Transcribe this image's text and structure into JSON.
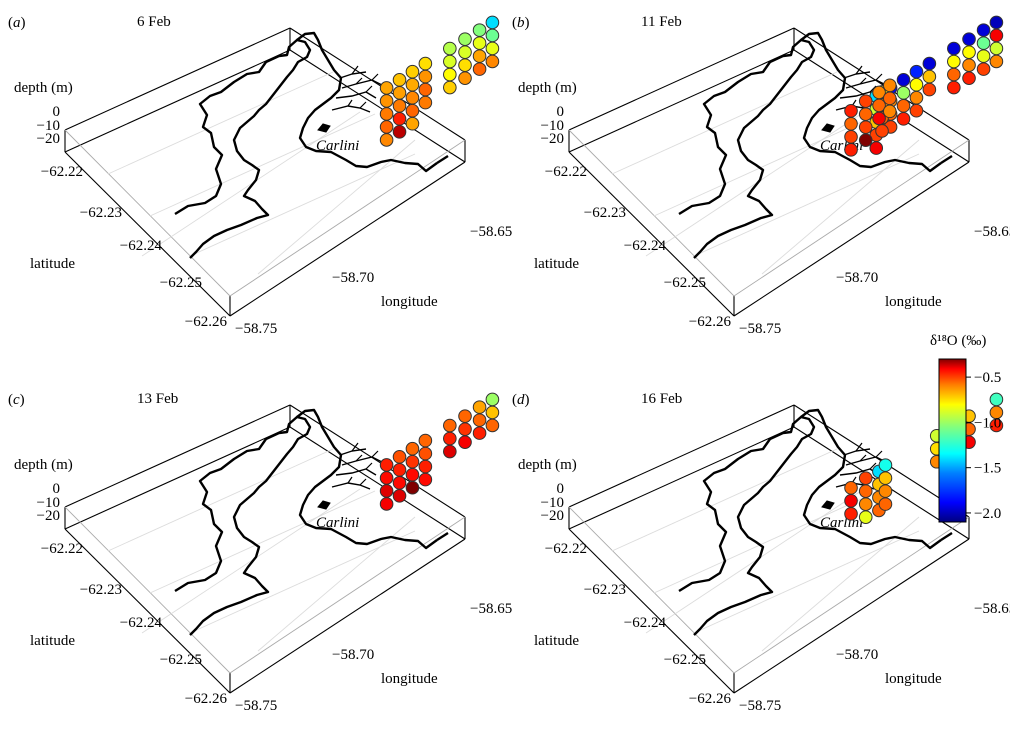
{
  "colorbar": {
    "title": "δ¹⁸O (‰)",
    "ticks": [
      "−0.5",
      "−1.0",
      "−1.5",
      "−2.0"
    ],
    "tick_values": [
      -0.5,
      -1.0,
      -1.5,
      -2.0
    ],
    "vmin": -2.1,
    "vmax": -0.3,
    "stops": [
      "#00007f",
      "#0000ff",
      "#0080ff",
      "#00ffff",
      "#80ff80",
      "#ffff00",
      "#ff8000",
      "#ff0000",
      "#7f0000"
    ]
  },
  "axis_text": {
    "depth_label": "depth (m)",
    "depth_ticks": [
      "0",
      "−10",
      "−20"
    ],
    "latitude_label": "latitude",
    "latitude_ticks": [
      "−62.22",
      "−62.23",
      "−62.24",
      "−62.25",
      "−62.26"
    ],
    "longitude_label": "longitude",
    "longitude_ticks": [
      "−58.65",
      "−58.70",
      "−58.75"
    ],
    "station_label": "Carlini"
  },
  "chart_data": [
    {
      "type": "scatter",
      "panel": "(a)",
      "title": "6 Feb",
      "stations": [
        {
          "lon": -58.712,
          "lat": -62.2352,
          "d18O": [
            -0.65,
            -0.62,
            -0.58,
            -0.55,
            -0.6
          ]
        },
        {
          "lon": -58.707,
          "lat": -62.2343,
          "d18O": [
            -0.7,
            -0.64,
            -0.58,
            -0.45,
            -0.35
          ]
        },
        {
          "lon": -58.702,
          "lat": -62.2334,
          "d18O": [
            -0.72,
            -0.66,
            -0.6,
            -0.55,
            -0.65
          ]
        },
        {
          "lon": -58.697,
          "lat": -62.2325,
          "d18O": [
            -0.75,
            -0.62,
            -0.55,
            -0.58
          ]
        },
        {
          "lon": -58.689,
          "lat": -62.2299,
          "d18O": [
            -0.95,
            -0.88,
            -0.8,
            -0.72
          ]
        },
        {
          "lon": -58.684,
          "lat": -62.2283,
          "d18O": [
            -1.0,
            -0.88,
            -0.75,
            -0.62
          ]
        },
        {
          "lon": -58.679,
          "lat": -62.2269,
          "d18O": [
            -1.05,
            -0.85,
            -0.65,
            -0.55
          ]
        },
        {
          "lon": -58.676,
          "lat": -62.2248,
          "d18O": [
            -1.4,
            -1.1,
            -0.85,
            -0.6
          ]
        }
      ]
    },
    {
      "type": "scatter",
      "panel": "(b)",
      "title": "11 Feb",
      "stations": [
        {
          "lon": -58.712,
          "lat": -62.2352,
          "d18O": [
            -1.9,
            -0.6,
            -0.55,
            -0.5
          ]
        },
        {
          "lon": -58.707,
          "lat": -62.2343,
          "d18O": [
            -1.95,
            -1.0,
            -0.55,
            -0.45
          ]
        },
        {
          "lon": -58.702,
          "lat": -62.2334,
          "d18O": [
            -1.8,
            -0.8,
            -0.6,
            -0.5
          ]
        },
        {
          "lon": -58.697,
          "lat": -62.2325,
          "d18O": [
            -1.95,
            -0.7,
            -0.5
          ]
        },
        {
          "lon": -58.689,
          "lat": -62.2299,
          "d18O": [
            -1.95,
            -0.8,
            -0.55,
            -0.45
          ]
        },
        {
          "lon": -58.684,
          "lat": -62.2283,
          "d18O": [
            -1.95,
            -0.8,
            -0.6,
            -0.45
          ]
        },
        {
          "lon": -58.679,
          "lat": -62.2269,
          "d18O": [
            -1.95,
            -1.1,
            -0.85,
            -0.5
          ]
        },
        {
          "lon": -58.676,
          "lat": -62.2248,
          "d18O": [
            -2.0,
            -0.4,
            -0.9,
            -0.6
          ]
        },
        {
          "lon": -58.713,
          "lat": -62.239,
          "d18O": [
            -1.4,
            -0.9,
            -0.7,
            -0.5,
            -0.4
          ]
        },
        {
          "lon": -58.708,
          "lat": -62.2403,
          "d18O": [
            -0.75,
            -0.6,
            -0.55,
            -0.5
          ]
        },
        {
          "lon": -58.717,
          "lat": -62.2443,
          "d18O": [
            -0.45,
            -0.55,
            -0.5,
            -0.45
          ]
        },
        {
          "lon": -58.709,
          "lat": -62.2447,
          "d18O": [
            -0.5,
            -0.55,
            -0.5,
            -0.3
          ]
        },
        {
          "lon": -58.702,
          "lat": -62.2449,
          "d18O": [
            -0.6,
            -0.55,
            -0.4
          ]
        },
        {
          "lon": -58.696,
          "lat": -62.2453,
          "d18O": [
            -0.6,
            -0.55,
            -0.6
          ]
        }
      ]
    },
    {
      "type": "scatter",
      "panel": "(c)",
      "title": "13 Feb",
      "stations": [
        {
          "lon": -58.712,
          "lat": -62.2352,
          "d18O": [
            -0.45,
            -0.42,
            -0.38,
            -0.4
          ]
        },
        {
          "lon": -58.707,
          "lat": -62.2343,
          "d18O": [
            -0.52,
            -0.45,
            -0.42,
            -0.38
          ]
        },
        {
          "lon": -58.702,
          "lat": -62.2334,
          "d18O": [
            -0.55,
            -0.48,
            -0.42,
            -0.3
          ]
        },
        {
          "lon": -58.697,
          "lat": -62.2325,
          "d18O": [
            -0.55,
            -0.52,
            -0.45,
            -0.42
          ]
        },
        {
          "lon": -58.689,
          "lat": -62.2299,
          "d18O": [
            -0.55,
            -0.45,
            -0.38
          ]
        },
        {
          "lon": -58.684,
          "lat": -62.2283,
          "d18O": [
            -0.55,
            -0.48,
            -0.4
          ]
        },
        {
          "lon": -58.679,
          "lat": -62.2269,
          "d18O": [
            -0.65,
            -0.55,
            -0.45
          ]
        },
        {
          "lon": -58.676,
          "lat": -62.2248,
          "d18O": [
            -1.0,
            -0.7,
            -0.55
          ]
        }
      ]
    },
    {
      "type": "scatter",
      "panel": "(d)",
      "title": "16 Feb",
      "stations": [
        {
          "lon": -58.712,
          "lat": -62.2388,
          "d18O": [
            -1.4,
            -0.7,
            -0.6,
            -0.55
          ]
        },
        {
          "lon": -58.693,
          "lat": -62.2327,
          "d18O": [
            -0.9,
            -0.75,
            -0.6
          ]
        },
        {
          "lon": -58.684,
          "lat": -62.2283,
          "d18O": [
            -0.7,
            -0.55,
            -0.4
          ]
        },
        {
          "lon": -58.676,
          "lat": -62.2248,
          "d18O": [
            -1.2,
            -0.6,
            -0.45
          ]
        },
        {
          "lon": -58.717,
          "lat": -62.2443,
          "d18O": [
            -0.55,
            -0.4,
            -0.45
          ]
        },
        {
          "lon": -58.709,
          "lat": -62.2447,
          "d18O": [
            -0.5,
            -0.55,
            -0.6,
            -0.85
          ]
        },
        {
          "lon": -58.698,
          "lat": -62.2454,
          "d18O": [
            -1.3,
            -0.7,
            -0.6,
            -0.55
          ]
        }
      ]
    }
  ]
}
